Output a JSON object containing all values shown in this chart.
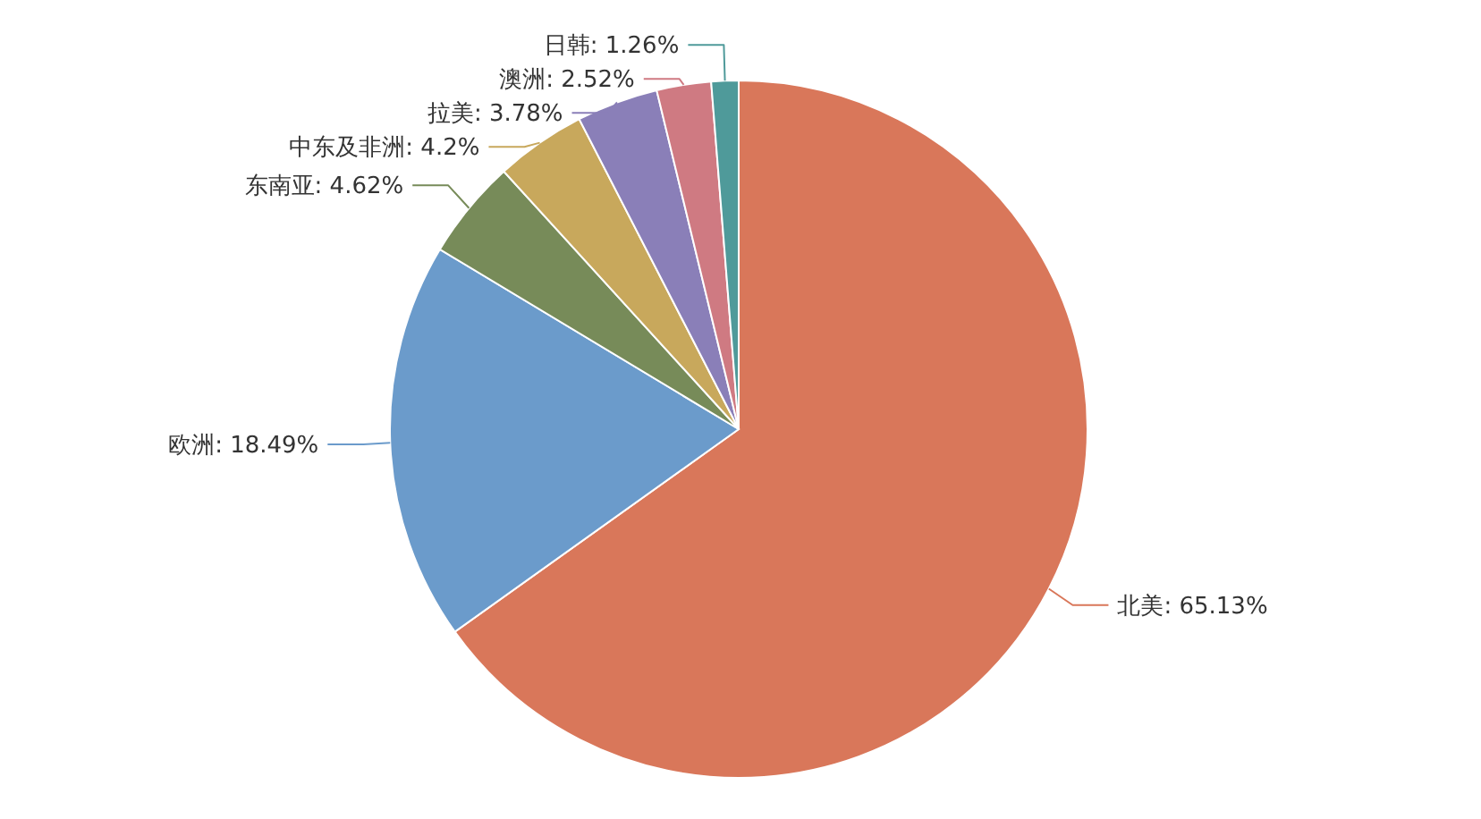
{
  "chart_data": {
    "type": "pie",
    "categories": [
      "北美",
      "欧洲",
      "东南亚",
      "中东及非洲",
      "拉美",
      "澳洲",
      "日韩"
    ],
    "values": [
      65.13,
      18.49,
      4.62,
      4.2,
      3.78,
      2.52,
      1.26
    ],
    "colors": [
      "#d9775a",
      "#6b9bcb",
      "#778b59",
      "#c8a85c",
      "#8a7fb8",
      "#cf7a82",
      "#4f9a9a"
    ],
    "value_labels": [
      "65.13%",
      "18.49%",
      "4.62%",
      "4.2%",
      "3.78%",
      "2.52%",
      "1.26%"
    ]
  }
}
